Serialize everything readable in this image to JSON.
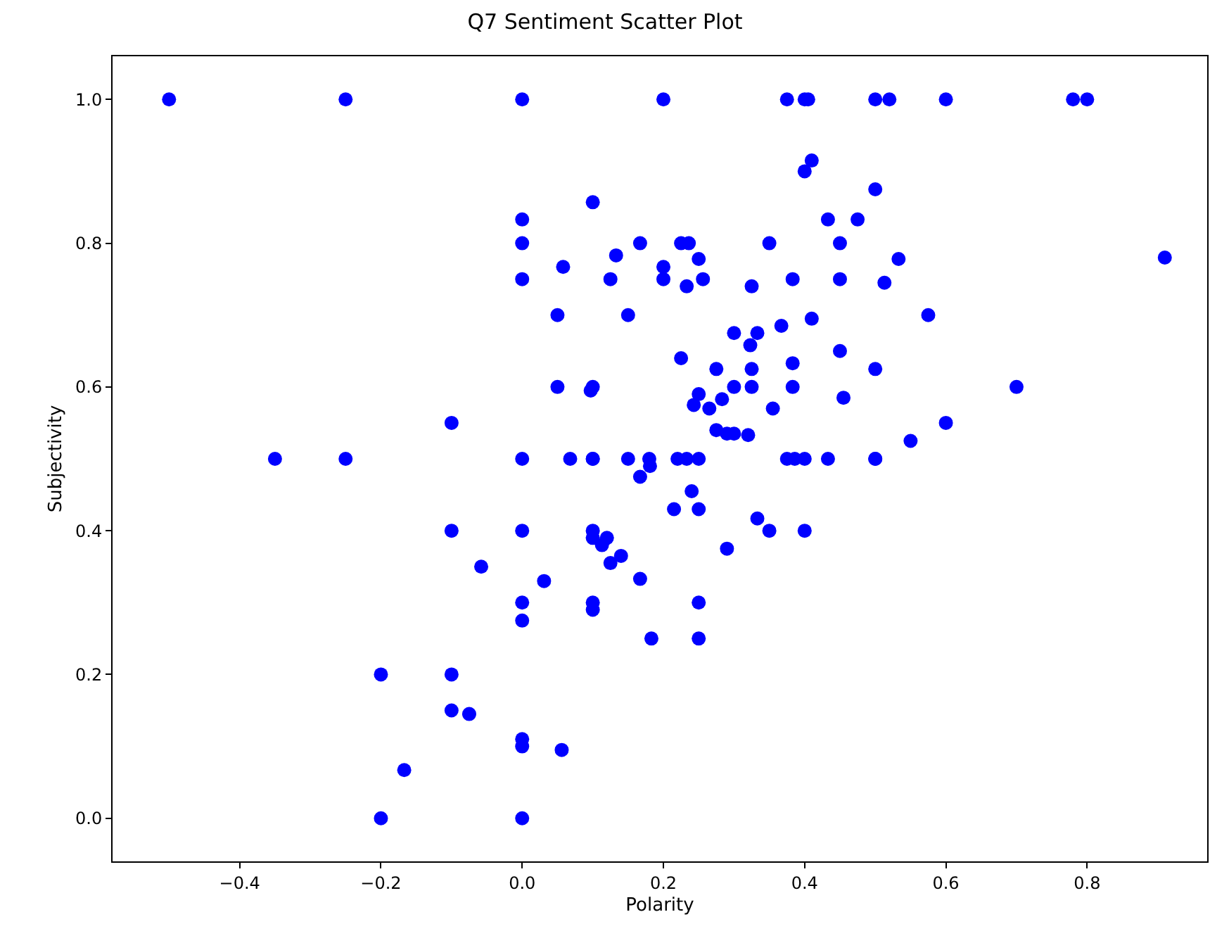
{
  "chart_data": {
    "type": "scatter",
    "title": "Q7 Sentiment Scatter Plot",
    "xlabel": "Polarity",
    "ylabel": "Subjectivity",
    "x": [
      -0.5,
      -0.25,
      0,
      0.2,
      0.375,
      0.4,
      0.405,
      0.5,
      0.52,
      0.6,
      0.78,
      0.8,
      0.41,
      0.4,
      0.5,
      0.1,
      0.0,
      0.433,
      0.475,
      0.0,
      0.167,
      0.225,
      0.236,
      0.35,
      0.45,
      0.133,
      0.25,
      0.533,
      0.91,
      0.058,
      0.2,
      0.2,
      0.0,
      0.125,
      0.256,
      0.383,
      0.45,
      0.233,
      0.325,
      0.513,
      0.05,
      0.15,
      0.41,
      0.575,
      0.367,
      0.3,
      0.333,
      0.323,
      0.45,
      0.225,
      0.383,
      0.5,
      0.275,
      0.325,
      0.05,
      0.1,
      0.097,
      0.3,
      0.325,
      0.383,
      0.7,
      0.6,
      0.25,
      0.243,
      0.265,
      0.283,
      0.355,
      0.455,
      0.275,
      0.29,
      0.3,
      0.32,
      0.55,
      -0.1,
      -0.35,
      -0.25,
      0,
      0.068,
      0.1,
      0.1,
      0.15,
      0.18,
      0.22,
      0.233,
      0.25,
      0.375,
      0.4,
      0.433,
      0.5,
      0.5,
      0.386,
      0.167,
      0.181,
      0.215,
      0.24,
      0.25,
      0.333,
      0.35,
      0.4,
      0.0,
      -0.1,
      0.1,
      0.1,
      0.12,
      0.113,
      0.14,
      0.125,
      0.29,
      -0.058,
      0.167,
      0.031,
      0.0,
      0.1,
      0.1,
      0.25,
      0.0,
      0.183,
      0.25,
      -0.2,
      -0.1,
      -0.1,
      -0.075,
      -0.167,
      0.0,
      0.0,
      0.056,
      -0.2,
      0.0
    ],
    "values": [
      1,
      1,
      1,
      1,
      1,
      1,
      1,
      1,
      1,
      1,
      1,
      1,
      0.915,
      0.9,
      0.875,
      0.857,
      0.833,
      0.833,
      0.833,
      0.8,
      0.8,
      0.8,
      0.8,
      0.8,
      0.8,
      0.783,
      0.778,
      0.778,
      0.78,
      0.767,
      0.767,
      0.75,
      0.75,
      0.75,
      0.75,
      0.75,
      0.75,
      0.74,
      0.74,
      0.745,
      0.7,
      0.7,
      0.695,
      0.7,
      0.685,
      0.675,
      0.675,
      0.658,
      0.65,
      0.64,
      0.633,
      0.625,
      0.625,
      0.625,
      0.6,
      0.6,
      0.595,
      0.6,
      0.6,
      0.6,
      0.6,
      0.55,
      0.59,
      0.575,
      0.57,
      0.583,
      0.57,
      0.585,
      0.54,
      0.535,
      0.535,
      0.533,
      0.525,
      0.55,
      0.5,
      0.5,
      0.5,
      0.5,
      0.5,
      0.5,
      0.5,
      0.5,
      0.5,
      0.5,
      0.5,
      0.5,
      0.5,
      0.5,
      0.5,
      0.5,
      0.5,
      0.475,
      0.49,
      0.43,
      0.455,
      0.43,
      0.417,
      0.4,
      0.4,
      0.4,
      0.4,
      0.4,
      0.39,
      0.39,
      0.38,
      0.365,
      0.355,
      0.375,
      0.35,
      0.333,
      0.33,
      0.3,
      0.3,
      0.29,
      0.3,
      0.275,
      0.25,
      0.25,
      0.2,
      0.2,
      0.15,
      0.145,
      0.067,
      0.11,
      0.1,
      0.095,
      0.0,
      0.0
    ],
    "color": "#0000ff",
    "marker": "circle",
    "grid": false,
    "xlim": [
      -0.58,
      0.97
    ],
    "ylim": [
      -0.06,
      1.06
    ],
    "xticks": [
      {
        "value": -0.4,
        "label": "−0.4"
      },
      {
        "value": -0.2,
        "label": "−0.2"
      },
      {
        "value": 0.0,
        "label": "0.0"
      },
      {
        "value": 0.2,
        "label": "0.2"
      },
      {
        "value": 0.4,
        "label": "0.4"
      },
      {
        "value": 0.6,
        "label": "0.6"
      },
      {
        "value": 0.8,
        "label": "0.8"
      }
    ],
    "yticks": [
      {
        "value": 0.0,
        "label": "0.0"
      },
      {
        "value": 0.2,
        "label": "0.2"
      },
      {
        "value": 0.4,
        "label": "0.4"
      },
      {
        "value": 0.6,
        "label": "0.6"
      },
      {
        "value": 0.8,
        "label": "0.8"
      },
      {
        "value": 1.0,
        "label": "1.0"
      }
    ]
  }
}
